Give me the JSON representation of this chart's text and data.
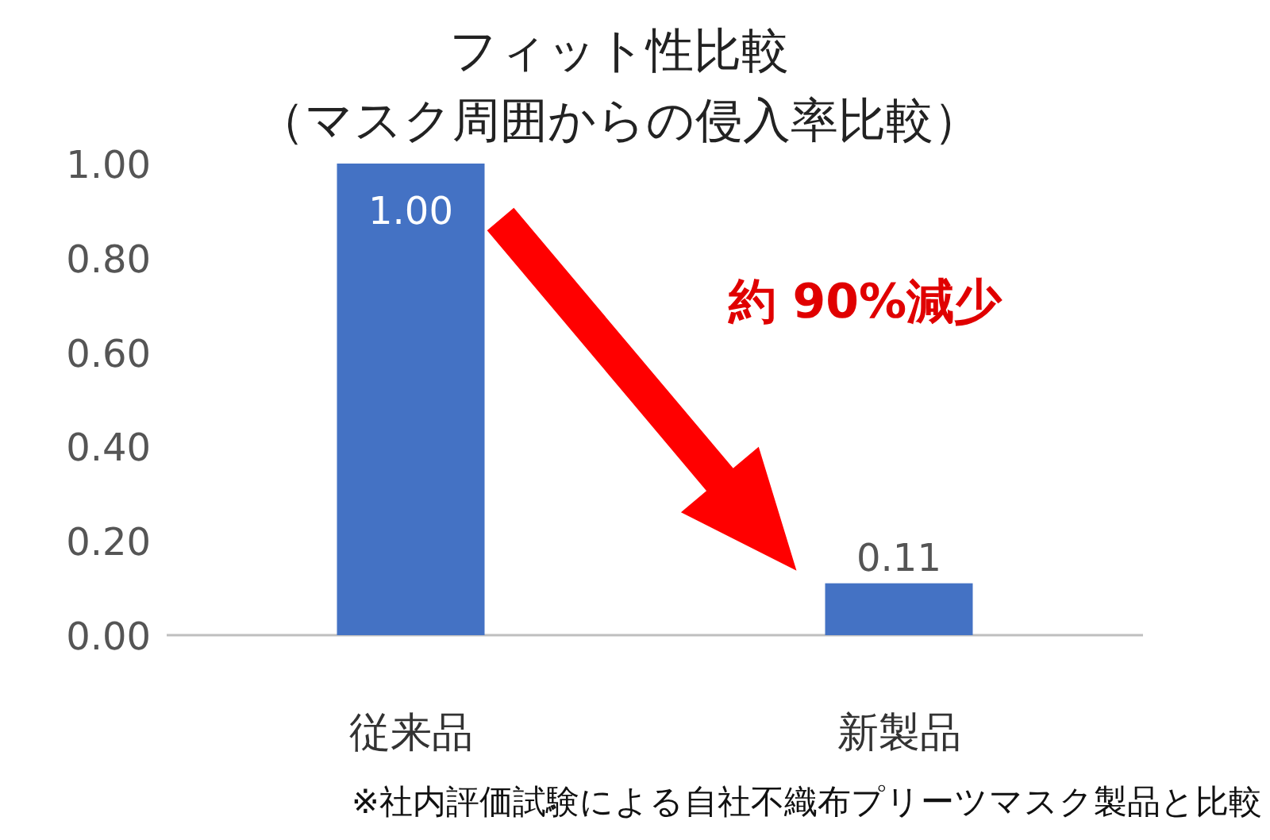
{
  "chart_data": {
    "type": "bar",
    "title": "フィット性比較",
    "subtitle": "（マスク周囲からの侵入率比較）",
    "categories": [
      "従来品",
      "新製品"
    ],
    "values": [
      1.0,
      0.11
    ],
    "color": "#4472c4",
    "ylim": [
      0,
      1
    ],
    "yticks": [
      {
        "value": 0,
        "label": "0.00"
      },
      {
        "value": 0.2,
        "label": "0.20"
      },
      {
        "value": 0.4,
        "label": "0.40"
      },
      {
        "value": 0.6,
        "label": "0.60"
      },
      {
        "value": 0.8,
        "label": "0.80"
      },
      {
        "value": 1,
        "label": "1.00"
      }
    ],
    "data_labels": true,
    "value_labels": [
      "1.00",
      "0.11"
    ],
    "annotations": [
      "約 90%減少",
      "※社内評価試験による自社不織布プリーツマスク製品と比較"
    ]
  }
}
